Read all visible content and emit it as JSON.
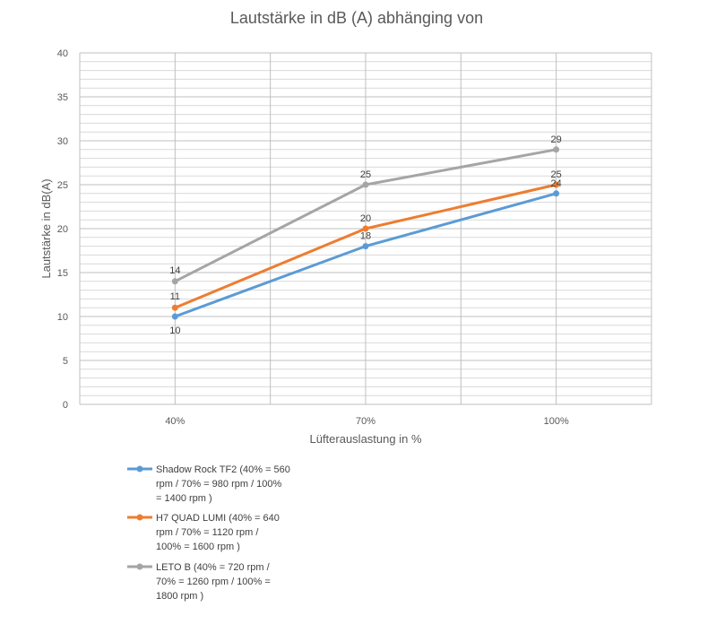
{
  "chart_data": {
    "type": "line",
    "title": "Lautstärke in dB (A) abhänging von",
    "xlabel": "Lüfterauslastung in %",
    "ylabel": "Lautstärke in dB(A)",
    "categories": [
      "40%",
      "70%",
      "100%"
    ],
    "ylim": [
      0,
      40
    ],
    "yticks": [
      "0",
      "5",
      "10",
      "15",
      "20",
      "25",
      "30",
      "35",
      "40"
    ],
    "grid": true,
    "legend_position": "bottom-left",
    "series": [
      {
        "name": "Shadow Rock TF2 (40% = 560 rpm / 70% = 980 rpm / 100% = 1400 rpm )",
        "legend_lines": [
          "Shadow Rock TF2 (40% = 560",
          "rpm / 70% = 980 rpm / 100%",
          "= 1400 rpm )"
        ],
        "values": [
          10,
          18,
          24
        ],
        "labels": [
          "10",
          "18",
          "24"
        ],
        "color": "#5B9BD5"
      },
      {
        "name": "H7 QUAD LUMI (40% = 640 rpm / 70% = 1120 rpm / 100% = 1600 rpm )",
        "legend_lines": [
          "H7 QUAD LUMI (40% = 640",
          "rpm / 70% = 1120 rpm /",
          "100% = 1600 rpm )"
        ],
        "values": [
          11,
          20,
          25
        ],
        "labels": [
          "11",
          "20",
          "25"
        ],
        "color": "#ED7D31"
      },
      {
        "name": "LETO B (40% = 720 rpm / 70% = 1260 rpm / 100% = 1800 rpm )",
        "legend_lines": [
          "LETO B (40% = 720 rpm /",
          "70% =  1260 rpm / 100% =",
          "1800 rpm )"
        ],
        "values": [
          14,
          25,
          29
        ],
        "labels": [
          "14",
          "25",
          "29"
        ],
        "color": "#A5A5A5"
      }
    ]
  }
}
